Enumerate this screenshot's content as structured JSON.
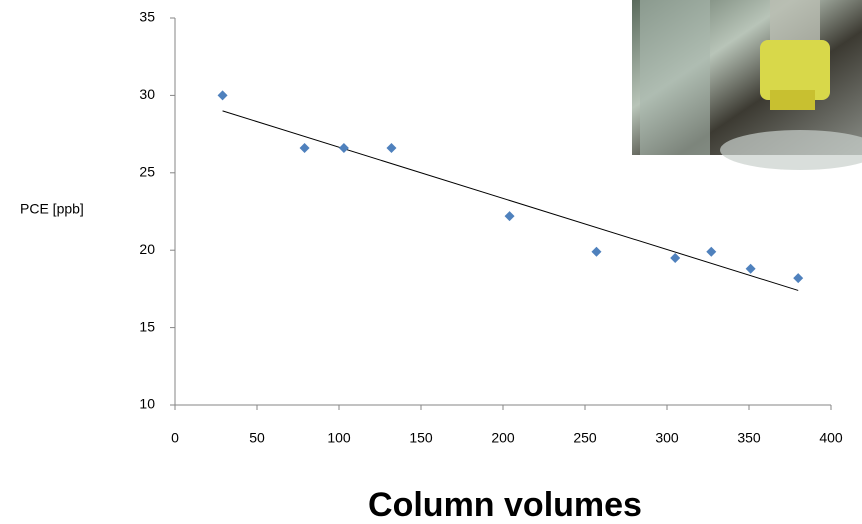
{
  "chart_data": {
    "type": "scatter",
    "y_label": "PCE [ppb]",
    "x_label": "Column volumes",
    "x": [
      29,
      79,
      103,
      132,
      204,
      257,
      305,
      327,
      351,
      380
    ],
    "values": [
      30.0,
      26.6,
      26.6,
      26.6,
      22.2,
      19.9,
      19.5,
      19.9,
      18.8,
      18.2
    ],
    "color": "#4f81bd",
    "trendline": {
      "x": [
        29,
        380
      ],
      "y": [
        29.0,
        17.4
      ],
      "color": "#000000"
    },
    "xlim": [
      0,
      400
    ],
    "xticks": [
      0,
      50,
      100,
      150,
      200,
      250,
      300,
      350,
      400
    ],
    "ylim": [
      10,
      35
    ],
    "yticks": [
      10,
      15,
      20,
      25,
      30,
      35
    ],
    "grid": false
  }
}
